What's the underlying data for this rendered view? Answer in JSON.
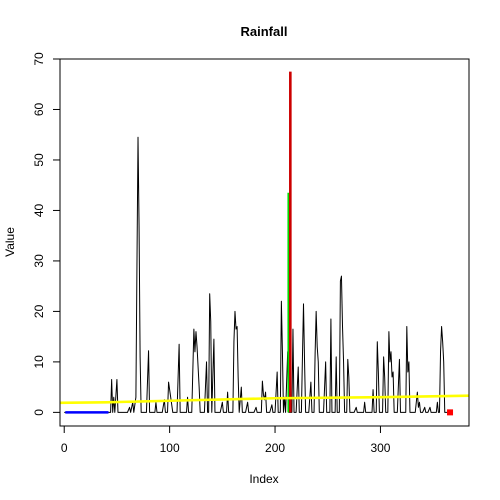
{
  "chart_data": {
    "type": "line",
    "title": "Rainfall",
    "xlabel": "Index",
    "ylabel": "Value",
    "xlim": [
      -4,
      384
    ],
    "ylim": [
      -2.7,
      70
    ],
    "x_ticks": [
      0,
      100,
      200,
      300
    ],
    "y_ticks": [
      0,
      10,
      20,
      30,
      40,
      50,
      60,
      70
    ],
    "grid": false,
    "legend": "none",
    "colors": {
      "rainfall": "#000000",
      "initial_segment": "#0000ff",
      "peak_onset": "#00dd00",
      "peak": "#cc0000",
      "trend": "#ffff00",
      "end_marker": "#ff0000"
    },
    "series": [
      {
        "key": "rainfall",
        "style": "line",
        "points": [
          [
            0,
            0
          ],
          [
            44,
            0
          ],
          [
            45,
            6.5
          ],
          [
            46,
            0
          ],
          [
            47,
            3
          ],
          [
            48,
            0
          ],
          [
            50,
            6.5
          ],
          [
            51,
            0
          ],
          [
            60,
            0
          ],
          [
            62,
            1
          ],
          [
            63,
            0
          ],
          [
            65,
            2
          ],
          [
            66,
            0
          ],
          [
            68,
            3
          ],
          [
            69,
            29
          ],
          [
            70,
            54.5
          ],
          [
            71,
            37
          ],
          [
            72,
            11
          ],
          [
            73,
            0
          ],
          [
            78,
            0
          ],
          [
            80,
            12.2
          ],
          [
            81,
            0
          ],
          [
            86,
            0
          ],
          [
            87,
            2
          ],
          [
            88,
            0
          ],
          [
            93,
            0
          ],
          [
            95,
            2.5
          ],
          [
            96,
            0
          ],
          [
            98,
            0
          ],
          [
            99,
            6
          ],
          [
            100,
            4.5
          ],
          [
            101,
            3
          ],
          [
            103,
            0
          ],
          [
            107,
            0
          ],
          [
            109,
            13.5
          ],
          [
            110,
            0
          ],
          [
            116,
            0
          ],
          [
            117,
            3
          ],
          [
            118,
            0
          ],
          [
            121,
            0
          ],
          [
            123,
            16.5
          ],
          [
            124,
            12
          ],
          [
            125,
            16
          ],
          [
            126,
            13
          ],
          [
            128,
            5
          ],
          [
            129,
            0
          ],
          [
            133,
            0
          ],
          [
            135,
            10
          ],
          [
            136,
            0
          ],
          [
            137,
            0
          ],
          [
            138,
            23.5
          ],
          [
            139,
            18
          ],
          [
            140,
            0
          ],
          [
            142,
            14.5
          ],
          [
            143,
            0
          ],
          [
            148,
            0
          ],
          [
            150,
            2
          ],
          [
            151,
            0
          ],
          [
            154,
            0
          ],
          [
            155,
            4
          ],
          [
            156,
            0
          ],
          [
            160,
            0
          ],
          [
            161,
            14
          ],
          [
            162,
            20
          ],
          [
            163,
            16.5
          ],
          [
            164,
            17
          ],
          [
            165,
            7
          ],
          [
            166,
            0
          ],
          [
            168,
            5
          ],
          [
            169,
            0
          ],
          [
            172,
            0
          ],
          [
            174,
            2
          ],
          [
            175,
            0
          ],
          [
            180,
            0
          ],
          [
            182,
            1
          ],
          [
            183,
            0
          ],
          [
            187,
            0
          ],
          [
            188,
            6.2
          ],
          [
            189,
            3.5
          ],
          [
            190,
            2.5
          ],
          [
            191,
            4
          ],
          [
            192,
            0
          ],
          [
            195,
            0
          ],
          [
            197,
            1.5
          ],
          [
            198,
            0
          ],
          [
            200,
            0
          ],
          [
            202,
            8
          ],
          [
            203,
            0
          ],
          [
            205,
            0
          ],
          [
            206,
            22
          ],
          [
            207,
            12
          ],
          [
            208,
            0
          ],
          [
            209,
            3
          ],
          [
            210,
            0
          ],
          [
            212,
            12
          ],
          [
            213,
            0
          ],
          [
            216,
            0
          ],
          [
            217,
            16.5
          ],
          [
            218,
            0
          ],
          [
            220,
            0
          ],
          [
            222,
            9
          ],
          [
            223,
            0
          ],
          [
            225,
            0
          ],
          [
            226,
            11
          ],
          [
            227,
            21.5
          ],
          [
            228,
            10
          ],
          [
            229,
            0
          ],
          [
            232,
            0
          ],
          [
            234,
            6
          ],
          [
            235,
            0
          ],
          [
            237,
            0
          ],
          [
            238,
            11.5
          ],
          [
            239,
            20
          ],
          [
            240,
            13
          ],
          [
            241,
            10
          ],
          [
            242,
            0
          ],
          [
            246,
            0
          ],
          [
            248,
            10
          ],
          [
            249,
            0
          ],
          [
            252,
            0
          ],
          [
            253,
            18.5
          ],
          [
            254,
            0
          ],
          [
            257,
            0
          ],
          [
            258,
            11
          ],
          [
            259,
            0
          ],
          [
            261,
            0
          ],
          [
            262,
            26
          ],
          [
            263,
            27
          ],
          [
            264,
            17
          ],
          [
            265,
            10
          ],
          [
            266,
            0
          ],
          [
            268,
            0
          ],
          [
            269,
            10.5
          ],
          [
            270,
            7
          ],
          [
            271,
            0
          ],
          [
            275,
            0
          ],
          [
            277,
            1
          ],
          [
            278,
            0
          ],
          [
            284,
            0
          ],
          [
            285,
            2
          ],
          [
            286,
            0
          ],
          [
            292,
            0
          ],
          [
            293,
            4.5
          ],
          [
            294,
            0
          ],
          [
            296,
            0
          ],
          [
            297,
            14
          ],
          [
            298,
            8
          ],
          [
            299,
            0
          ],
          [
            302,
            0
          ],
          [
            303,
            11
          ],
          [
            304,
            7
          ],
          [
            305,
            0
          ],
          [
            307,
            0
          ],
          [
            308,
            16
          ],
          [
            309,
            10
          ],
          [
            310,
            12
          ],
          [
            311,
            7
          ],
          [
            312,
            8
          ],
          [
            313,
            0
          ],
          [
            316,
            0
          ],
          [
            318,
            10.5
          ],
          [
            319,
            0
          ],
          [
            324,
            0
          ],
          [
            325,
            17
          ],
          [
            326,
            8
          ],
          [
            327,
            10
          ],
          [
            328,
            0
          ],
          [
            333,
            0
          ],
          [
            335,
            4
          ],
          [
            336,
            1
          ],
          [
            337,
            2
          ],
          [
            338,
            0
          ],
          [
            340,
            0
          ],
          [
            342,
            1
          ],
          [
            343,
            0
          ],
          [
            345,
            0
          ],
          [
            347,
            1
          ],
          [
            348,
            0
          ],
          [
            353,
            0
          ],
          [
            354,
            2
          ],
          [
            355,
            0
          ],
          [
            356,
            0
          ],
          [
            357,
            12
          ],
          [
            358,
            17
          ],
          [
            359,
            14
          ],
          [
            360,
            10
          ],
          [
            361,
            0
          ],
          [
            365,
            0
          ]
        ]
      },
      {
        "key": "initial_segment",
        "style": "thick-line",
        "points": [
          [
            1,
            0
          ],
          [
            42,
            0
          ]
        ]
      },
      {
        "key": "peak_onset",
        "style": "vline",
        "points": [
          [
            213,
            0
          ],
          [
            213,
            43.5
          ]
        ]
      },
      {
        "key": "peak",
        "style": "vline",
        "points": [
          [
            214.5,
            0
          ],
          [
            214.5,
            67.5
          ]
        ]
      },
      {
        "key": "trend",
        "style": "thick-line",
        "points": [
          [
            -4,
            1.9
          ],
          [
            40,
            2.0
          ],
          [
            100,
            2.3
          ],
          [
            200,
            2.8
          ],
          [
            300,
            3.0
          ],
          [
            384,
            3.3
          ]
        ]
      },
      {
        "key": "end_marker",
        "style": "square",
        "points": [
          [
            366,
            0
          ]
        ]
      }
    ]
  }
}
